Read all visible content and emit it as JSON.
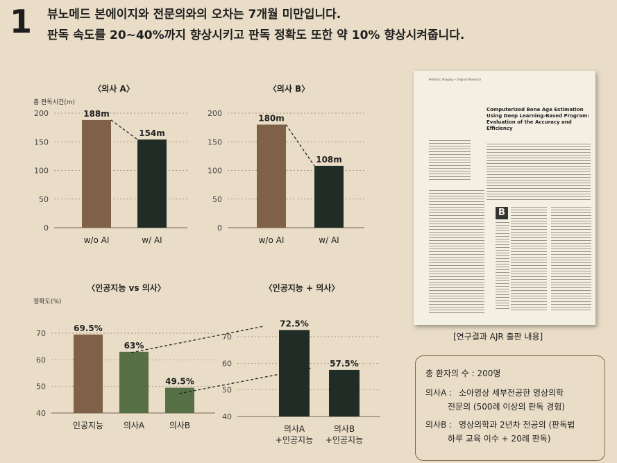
{
  "header": {
    "number": "1",
    "line1": "뷰노메드 본에이지와 전문의와의 오차는 7개월 미만입니다.",
    "line2": "판독 속도를 20~40%까지 향상시키고 판독 정확도 또한 약 10% 향상시켜줍니다."
  },
  "colors": {
    "brown": "#7f6148",
    "dark": "#1f2d26",
    "green": "#566f45",
    "background": "#e9ddc7"
  },
  "chart_data": [
    {
      "type": "bar",
      "title": "〈의사 A〉",
      "ylabel": "총 판독시간(m)",
      "categories": [
        "w/o AI",
        "w/ AI"
      ],
      "values": [
        188,
        154
      ],
      "value_labels": [
        "188m",
        "154m"
      ],
      "ylim": [
        0,
        200
      ],
      "yticks": [
        "0",
        "50",
        "100",
        "150",
        "200"
      ],
      "bar_colors": [
        "#7f6148",
        "#1f2d26"
      ],
      "grid": true,
      "connector": true
    },
    {
      "type": "bar",
      "title": "〈의사 B〉",
      "ylabel": "",
      "categories": [
        "w/o AI",
        "w/ AI"
      ],
      "values": [
        180,
        108
      ],
      "value_labels": [
        "180m",
        "108m"
      ],
      "ylim": [
        0,
        200
      ],
      "yticks": [
        "0",
        "50",
        "100",
        "150",
        "200"
      ],
      "bar_colors": [
        "#7f6148",
        "#1f2d26"
      ],
      "grid": true,
      "connector": true
    },
    {
      "type": "bar",
      "title": "〈인공지능 vs 의사〉",
      "ylabel": "정확도(%)",
      "categories": [
        "인공지능",
        "의사A",
        "의사B"
      ],
      "values": [
        69.5,
        63,
        49.5
      ],
      "value_labels": [
        "69.5%",
        "63%",
        "49.5%"
      ],
      "ylim": [
        40,
        70
      ],
      "yticks": [
        "40",
        "50",
        "60",
        "70"
      ],
      "bar_colors": [
        "#7f6148",
        "#566f45",
        "#566f45"
      ],
      "grid": true,
      "connector": false
    },
    {
      "type": "bar",
      "title": "〈인공지능 + 의사〉",
      "ylabel": "",
      "categories": [
        "의사A\n+인공지능",
        "의사B\n+인공지능"
      ],
      "values": [
        72.5,
        57.5
      ],
      "value_labels": [
        "72.5%",
        "57.5%"
      ],
      "ylim": [
        40,
        70
      ],
      "yticks": [
        "40",
        "50",
        "60",
        "70"
      ],
      "bar_colors": [
        "#1f2d26",
        "#1f2d26"
      ],
      "grid": true,
      "connector": false
    }
  ],
  "paper": {
    "journal": "Pediatric Imaging • Original Research",
    "title": "Computerized Bone Age Estimation Using Deep Learning-Based Program: Evaluation of the Accuracy and Efficiency",
    "drop_cap": "B",
    "caption": "[연구결과 AJR 출판 내용]"
  },
  "info": {
    "patients": "총 환자의 수 : 200명",
    "doctor_a_label": "의사A :",
    "doctor_a_1": "소아영상 세부전공한 영상의학",
    "doctor_a_2": "전문의 (500례 이상의 판독 경험)",
    "doctor_b_label": "의사B :",
    "doctor_b_1": "영상의학과 2년차 전공의 (판독법",
    "doctor_b_2": "하루 교육 이수 + 20례 판독)"
  }
}
